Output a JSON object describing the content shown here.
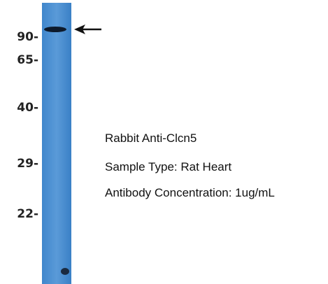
{
  "markers": [
    "90-",
    "65-",
    "40-",
    "29-",
    "22-"
  ],
  "info": [
    "Rabbit Anti-Clcn5",
    "Sample Type: Rat Heart",
    "Antibody Concentration: 1ug/mL"
  ]
}
